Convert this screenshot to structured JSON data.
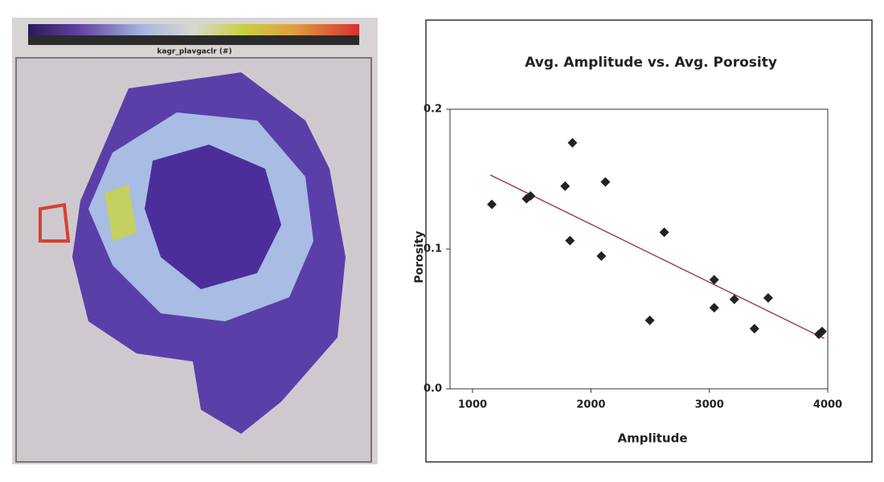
{
  "map": {
    "label": "kagr_plavgaclr (#)"
  },
  "chart_data": {
    "type": "scatter",
    "title": "Avg. Amplitude vs. Avg. Porosity",
    "x_label": "Amplitude",
    "y_label": "Porosity",
    "xlim": [
      810,
      4000
    ],
    "xticks": [
      1000,
      2000,
      3000,
      4000
    ],
    "ylim": [
      0,
      0.2
    ],
    "yticks": [
      {
        "value": 0,
        "label": "0.0"
      },
      0.1,
      0.2
    ],
    "series": [
      {
        "color": "#222222",
        "x": [
          1163,
          1456,
          1490,
          1782,
          1844,
          1823,
          2122,
          2088,
          2619,
          2497,
          3041,
          3041,
          3211,
          3497,
          3381,
          3925,
          3952
        ],
        "values": [
          0.132,
          0.136,
          0.138,
          0.145,
          0.176,
          0.106,
          0.148,
          0.095,
          0.112,
          0.049,
          0.078,
          0.058,
          0.064,
          0.065,
          0.043,
          0.039,
          0.041
        ]
      }
    ],
    "trendline": {
      "color": "#a0443c",
      "x": [
        1150,
        3970
      ],
      "values": [
        0.153,
        0.036
      ]
    }
  }
}
